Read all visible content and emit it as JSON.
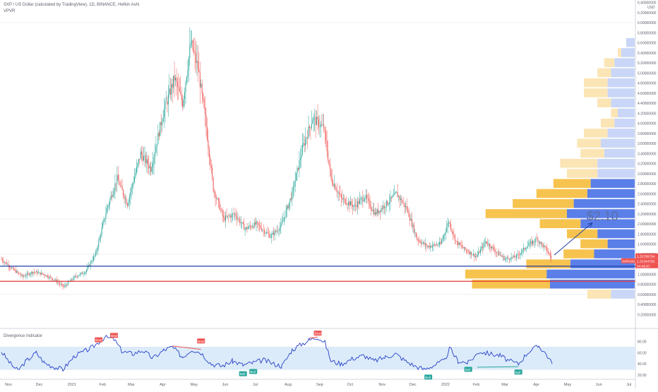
{
  "header": {
    "symbol_line": "SXP / US Dollar (calculated by TradingView), 1D, BINANCE, Hefkin Ashi",
    "indicator_line": "VPVR"
  },
  "currency_label": "USD",
  "annotation_text": "$2.10",
  "price_tags": {
    "tag1": "1.32786704",
    "tag2_prefix": "SXPUSD",
    "tag2_value": "1.31344750",
    "tag3": "04:45:57"
  },
  "colors": {
    "up": "#26a69a",
    "down": "#ef5350",
    "vp_up": "#5b7fe8",
    "vp_up_light": "#c9d6f7",
    "vp_down": "#f7c34f",
    "vp_down_light": "#fbe5b5",
    "support_blue": "#1e3ea8",
    "support_red": "#e53935",
    "osc_line": "#2440c8",
    "osc_band": "#dcebfa",
    "arrow": "#2040a8"
  },
  "chart_data": [
    {
      "type": "candlestick",
      "title": "SXP / US Dollar (calculated by TradingView), 1D, BINANCE, Hefkin Ashi",
      "x_tick_labels": [
        "Nov",
        "Dec",
        "2021",
        "Feb",
        "Mar",
        "Apr",
        "May",
        "Jun",
        "Jul",
        "Aug",
        "Sep",
        "Oct",
        "Nov",
        "Dec",
        "2022",
        "Feb",
        "Mar",
        "Apr",
        "May",
        "Jun",
        "Jul"
      ],
      "y_tick_labels": [
        "6.40000000",
        "6.20000000",
        "6.00000000",
        "5.80000000",
        "5.60000000",
        "5.40000000",
        "5.20000000",
        "5.00000000",
        "4.80000000",
        "4.60000000",
        "4.40000000",
        "4.20000000",
        "4.00000000",
        "3.80000000",
        "3.60000000",
        "3.40000000",
        "3.20000000",
        "3.00000000",
        "2.80000000",
        "2.60000000",
        "2.40000000",
        "2.20000000",
        "2.00000000",
        "1.80000000",
        "1.60000000",
        "1.40000000",
        "1.20000000",
        "1.00000000",
        "0.80000000",
        "0.60000000",
        "0.40000000",
        "0.20000000"
      ],
      "ylim": [
        0.1,
        6.45
      ],
      "price_path": [
        {
          "date": "2020-10-25",
          "close": 1.3
        },
        {
          "date": "2020-11-05",
          "close": 1.1
        },
        {
          "date": "2020-11-15",
          "close": 0.95
        },
        {
          "date": "2020-11-25",
          "close": 1.05
        },
        {
          "date": "2020-12-05",
          "close": 1.0
        },
        {
          "date": "2020-12-15",
          "close": 0.9
        },
        {
          "date": "2020-12-25",
          "close": 0.75
        },
        {
          "date": "2021-01-05",
          "close": 0.95
        },
        {
          "date": "2021-01-15",
          "close": 1.05
        },
        {
          "date": "2021-01-25",
          "close": 1.4
        },
        {
          "date": "2021-02-05",
          "close": 2.3
        },
        {
          "date": "2021-02-15",
          "close": 2.9
        },
        {
          "date": "2021-02-25",
          "close": 2.4
        },
        {
          "date": "2021-03-10",
          "close": 3.4
        },
        {
          "date": "2021-03-20",
          "close": 3.1
        },
        {
          "date": "2021-04-01",
          "close": 4.2
        },
        {
          "date": "2021-04-12",
          "close": 4.9
        },
        {
          "date": "2021-04-20",
          "close": 4.4
        },
        {
          "date": "2021-04-28",
          "close": 5.6
        },
        {
          "date": "2021-05-05",
          "close": 5.1
        },
        {
          "date": "2021-05-12",
          "close": 4.1
        },
        {
          "date": "2021-05-20",
          "close": 2.7
        },
        {
          "date": "2021-05-30",
          "close": 2.1
        },
        {
          "date": "2021-06-10",
          "close": 2.2
        },
        {
          "date": "2021-06-20",
          "close": 1.9
        },
        {
          "date": "2021-07-01",
          "close": 2.0
        },
        {
          "date": "2021-07-15",
          "close": 1.75
        },
        {
          "date": "2021-07-25",
          "close": 1.95
        },
        {
          "date": "2021-08-05",
          "close": 2.6
        },
        {
          "date": "2021-08-15",
          "close": 3.5
        },
        {
          "date": "2021-08-25",
          "close": 4.1
        },
        {
          "date": "2021-09-05",
          "close": 3.9
        },
        {
          "date": "2021-09-12",
          "close": 2.9
        },
        {
          "date": "2021-09-22",
          "close": 2.5
        },
        {
          "date": "2021-10-05",
          "close": 2.35
        },
        {
          "date": "2021-10-15",
          "close": 2.55
        },
        {
          "date": "2021-10-25",
          "close": 2.2
        },
        {
          "date": "2021-11-05",
          "close": 2.4
        },
        {
          "date": "2021-11-15",
          "close": 2.6
        },
        {
          "date": "2021-11-25",
          "close": 2.3
        },
        {
          "date": "2021-12-05",
          "close": 1.7
        },
        {
          "date": "2021-12-15",
          "close": 1.55
        },
        {
          "date": "2021-12-28",
          "close": 1.6
        },
        {
          "date": "2022-01-05",
          "close": 2.05
        },
        {
          "date": "2022-01-12",
          "close": 1.65
        },
        {
          "date": "2022-01-20",
          "close": 1.5
        },
        {
          "date": "2022-02-01",
          "close": 1.35
        },
        {
          "date": "2022-02-10",
          "close": 1.65
        },
        {
          "date": "2022-02-20",
          "close": 1.45
        },
        {
          "date": "2022-03-01",
          "close": 1.3
        },
        {
          "date": "2022-03-12",
          "close": 1.35
        },
        {
          "date": "2022-03-22",
          "close": 1.55
        },
        {
          "date": "2022-04-01",
          "close": 1.7
        },
        {
          "date": "2022-04-10",
          "close": 1.5
        },
        {
          "date": "2022-04-15",
          "close": 1.33
        }
      ],
      "annotations": {
        "support_line_blue": 1.16,
        "support_line_red": 0.86,
        "target_label": "$2.10",
        "target_value": 2.1,
        "arrow_from": {
          "date": "2022-04-18",
          "price": 1.38
        },
        "arrow_to": {
          "date": "2022-05-25",
          "price": 2.02
        }
      },
      "volume_profile": [
        {
          "price": 5.6,
          "up": 0.05,
          "down": 0.0,
          "light": true
        },
        {
          "price": 5.4,
          "up": 0.08,
          "down": 0.02,
          "light": true
        },
        {
          "price": 5.2,
          "up": 0.12,
          "down": 0.06,
          "light": true
        },
        {
          "price": 5.0,
          "up": 0.14,
          "down": 0.08,
          "light": true
        },
        {
          "price": 4.8,
          "up": 0.16,
          "down": 0.14,
          "light": true
        },
        {
          "price": 4.6,
          "up": 0.16,
          "down": 0.14,
          "light": true
        },
        {
          "price": 4.4,
          "up": 0.14,
          "down": 0.08,
          "light": true
        },
        {
          "price": 4.2,
          "up": 0.1,
          "down": 0.04,
          "light": true
        },
        {
          "price": 4.0,
          "up": 0.12,
          "down": 0.08,
          "light": true
        },
        {
          "price": 3.8,
          "up": 0.16,
          "down": 0.14,
          "light": true
        },
        {
          "price": 3.6,
          "up": 0.2,
          "down": 0.14,
          "light": true
        },
        {
          "price": 3.4,
          "up": 0.18,
          "down": 0.14,
          "light": true
        },
        {
          "price": 3.2,
          "up": 0.22,
          "down": 0.22,
          "light": true
        },
        {
          "price": 3.0,
          "up": 0.22,
          "down": 0.18,
          "light": true
        },
        {
          "price": 2.8,
          "up": 0.26,
          "down": 0.22,
          "light": false
        },
        {
          "price": 2.6,
          "up": 0.28,
          "down": 0.3,
          "light": false
        },
        {
          "price": 2.4,
          "up": 0.36,
          "down": 0.36,
          "light": false
        },
        {
          "price": 2.2,
          "up": 0.4,
          "down": 0.48,
          "light": false
        },
        {
          "price": 2.0,
          "up": 0.32,
          "down": 0.24,
          "light": false
        },
        {
          "price": 1.8,
          "up": 0.22,
          "down": 0.18,
          "light": false
        },
        {
          "price": 1.6,
          "up": 0.16,
          "down": 0.16,
          "light": false
        },
        {
          "price": 1.4,
          "up": 0.24,
          "down": 0.18,
          "light": false
        },
        {
          "price": 1.2,
          "up": 0.38,
          "down": 0.26,
          "light": false
        },
        {
          "price": 1.0,
          "up": 0.52,
          "down": 0.48,
          "light": false
        },
        {
          "price": 0.8,
          "up": 0.5,
          "down": 0.46,
          "light": false
        },
        {
          "price": 0.6,
          "up": 0.14,
          "down": 0.14,
          "light": true
        }
      ]
    },
    {
      "type": "line",
      "title": "Divergence Indicator",
      "y_tick_labels": [
        "80.00",
        "60.00",
        "40.00",
        "20.00"
      ],
      "ylim": [
        20,
        92
      ],
      "band": [
        30,
        70
      ],
      "series": [
        {
          "points": [
            {
              "date": "2020-10-25",
              "value": 62
            },
            {
              "date": "2020-11-03",
              "value": 40
            },
            {
              "date": "2020-11-10",
              "value": 28
            },
            {
              "date": "2020-11-18",
              "value": 45
            },
            {
              "date": "2020-11-28",
              "value": 60
            },
            {
              "date": "2020-12-06",
              "value": 42
            },
            {
              "date": "2020-12-16",
              "value": 34
            },
            {
              "date": "2020-12-24",
              "value": 30
            },
            {
              "date": "2021-01-05",
              "value": 55
            },
            {
              "date": "2021-01-14",
              "value": 62
            },
            {
              "date": "2021-01-22",
              "value": 70
            },
            {
              "date": "2021-02-03",
              "value": 88
            },
            {
              "date": "2021-02-12",
              "value": 84
            },
            {
              "date": "2021-02-20",
              "value": 62
            },
            {
              "date": "2021-03-02",
              "value": 58
            },
            {
              "date": "2021-03-12",
              "value": 64
            },
            {
              "date": "2021-03-22",
              "value": 50
            },
            {
              "date": "2021-04-02",
              "value": 65
            },
            {
              "date": "2021-04-10",
              "value": 70
            },
            {
              "date": "2021-04-20",
              "value": 52
            },
            {
              "date": "2021-04-29",
              "value": 66
            },
            {
              "date": "2021-05-08",
              "value": 60
            },
            {
              "date": "2021-05-18",
              "value": 40
            },
            {
              "date": "2021-05-28",
              "value": 36
            },
            {
              "date": "2021-06-08",
              "value": 45
            },
            {
              "date": "2021-06-18",
              "value": 38
            },
            {
              "date": "2021-06-28",
              "value": 42
            },
            {
              "date": "2021-07-08",
              "value": 47
            },
            {
              "date": "2021-07-18",
              "value": 40
            },
            {
              "date": "2021-07-26",
              "value": 36
            },
            {
              "date": "2021-08-05",
              "value": 65
            },
            {
              "date": "2021-08-14",
              "value": 75
            },
            {
              "date": "2021-08-22",
              "value": 83
            },
            {
              "date": "2021-08-30",
              "value": 88
            },
            {
              "date": "2021-09-06",
              "value": 78
            },
            {
              "date": "2021-09-12",
              "value": 45
            },
            {
              "date": "2021-09-22",
              "value": 40
            },
            {
              "date": "2021-10-04",
              "value": 50
            },
            {
              "date": "2021-10-14",
              "value": 55
            },
            {
              "date": "2021-10-24",
              "value": 45
            },
            {
              "date": "2021-11-04",
              "value": 52
            },
            {
              "date": "2021-11-14",
              "value": 58
            },
            {
              "date": "2021-11-24",
              "value": 45
            },
            {
              "date": "2021-12-03",
              "value": 36
            },
            {
              "date": "2021-12-12",
              "value": 30
            },
            {
              "date": "2021-12-22",
              "value": 38
            },
            {
              "date": "2022-01-01",
              "value": 46
            },
            {
              "date": "2022-01-06",
              "value": 68
            },
            {
              "date": "2022-01-14",
              "value": 45
            },
            {
              "date": "2022-01-24",
              "value": 42
            },
            {
              "date": "2022-02-04",
              "value": 62
            },
            {
              "date": "2022-02-14",
              "value": 58
            },
            {
              "date": "2022-02-24",
              "value": 55
            },
            {
              "date": "2022-03-05",
              "value": 45
            },
            {
              "date": "2022-03-14",
              "value": 40
            },
            {
              "date": "2022-03-24",
              "value": 62
            },
            {
              "date": "2022-04-03",
              "value": 72
            },
            {
              "date": "2022-04-10",
              "value": 58
            },
            {
              "date": "2022-04-16",
              "value": 40
            }
          ]
        }
      ],
      "markers": [
        {
          "label": "Bear",
          "date": "2021-01-28",
          "value": 76
        },
        {
          "label": "Bear",
          "date": "2021-02-12",
          "value": 84
        },
        {
          "label": "Bear",
          "date": "2021-05-08",
          "value": 74
        },
        {
          "label": "Bear",
          "date": "2021-08-30",
          "value": 88
        },
        {
          "label": "Bull",
          "date": "2021-06-18",
          "value": 28
        },
        {
          "label": "Bull",
          "date": "2021-06-28",
          "value": 32
        },
        {
          "label": "Bull",
          "date": "2021-12-16",
          "value": 22
        },
        {
          "label": "Bull",
          "date": "2022-01-24",
          "value": 36
        },
        {
          "label": "Bull",
          "date": "2022-03-14",
          "value": 31
        }
      ],
      "divergence_lines": [
        {
          "color": "red",
          "from": {
            "date": "2021-04-10",
            "value": 72
          },
          "to": {
            "date": "2021-05-08",
            "value": 66
          }
        },
        {
          "color": "red",
          "from": {
            "date": "2021-08-22",
            "value": 86
          },
          "to": {
            "date": "2021-08-30",
            "value": 88
          }
        },
        {
          "color": "green",
          "from": {
            "date": "2022-02-02",
            "value": 34
          },
          "to": {
            "date": "2022-03-14",
            "value": 35
          }
        }
      ]
    }
  ]
}
